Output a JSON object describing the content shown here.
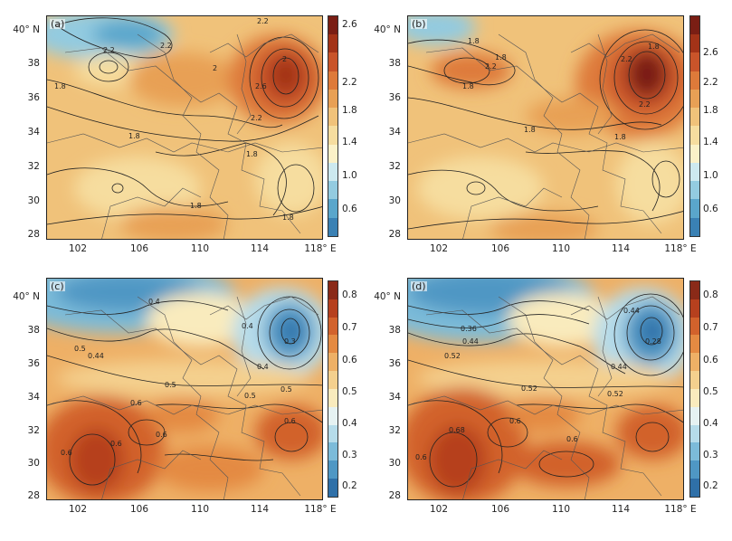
{
  "panels": [
    {
      "id": "a",
      "label": "(a)",
      "group": "top",
      "contour_labels": [
        "2.2",
        "2.2",
        "2.2",
        "2",
        "2",
        "2.6",
        "1.8",
        "1.8",
        "2.2",
        "1.8",
        "1.8",
        "1.8"
      ]
    },
    {
      "id": "b",
      "label": "(b)",
      "group": "top",
      "contour_labels": [
        "1.8",
        "1.8",
        "2.2",
        "1.8",
        "2.2",
        "1.8",
        "1.8",
        "1.8",
        "2.2"
      ]
    },
    {
      "id": "c",
      "label": "(c)",
      "group": "bottom",
      "contour_labels": [
        "0.4",
        "0.4",
        "0.5",
        "0.5",
        "0.44",
        "0.6",
        "0.6",
        "0.5",
        "0.6",
        "0.6",
        "0.5",
        "0.6",
        "0.4",
        "0.3"
      ]
    },
    {
      "id": "d",
      "label": "(d)",
      "group": "bottom",
      "contour_labels": [
        "0.36",
        "0.44",
        "0.52",
        "0.52",
        "0.6",
        "0.68",
        "0.6",
        "0.52",
        "0.6",
        "0.44",
        "0.28",
        "0.44"
      ]
    }
  ],
  "axes": {
    "lat_ticks": [
      "40° N",
      "38",
      "36",
      "34",
      "32",
      "30",
      "28"
    ],
    "lon_ticks": [
      "102",
      "106",
      "110",
      "114",
      "118° E"
    ]
  },
  "colorbars": {
    "top": {
      "ticks": [
        "2.6",
        "2.2",
        "1.8",
        "1.4",
        "1.0",
        "0.6"
      ],
      "colors": [
        "#7a1e14",
        "#a33318",
        "#c9542a",
        "#de7a3a",
        "#e8a055",
        "#f0c27a",
        "#f6dd9f",
        "#fbf1c8",
        "#cde9ef",
        "#93cbe0",
        "#5aa6cb",
        "#3a81b4"
      ]
    },
    "bottom": {
      "ticks": [
        "0.8",
        "0.7",
        "0.6",
        "0.5",
        "0.4",
        "0.3",
        "0.2"
      ],
      "colors": [
        "#8a2a18",
        "#b6401e",
        "#d2622c",
        "#e48a42",
        "#eeb066",
        "#f4d08e",
        "#f9ebbd",
        "#e6f2f2",
        "#b6dcea",
        "#7cbbd9",
        "#4f97c4",
        "#2f70a8"
      ]
    }
  }
}
